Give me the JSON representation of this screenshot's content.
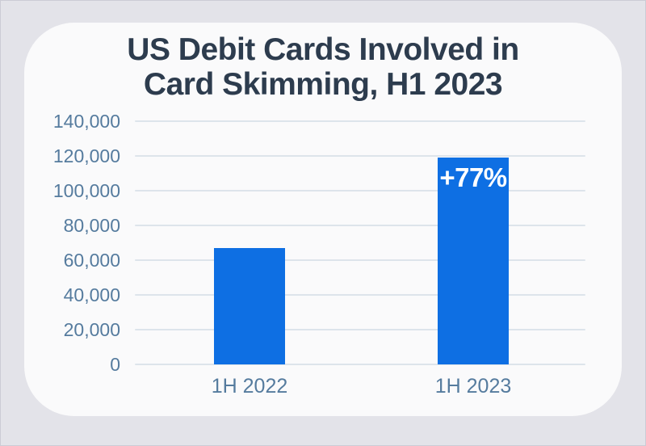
{
  "colors": {
    "page_bg": "#e3e3e9",
    "card_bg": "#fafafb",
    "title_color": "#2d3c4e",
    "tick_color": "#557b9e",
    "grid_color": "#dde4eb",
    "bar_color": "#0e6fe3",
    "annotation_color": "#ffffff"
  },
  "chart_data": {
    "type": "bar",
    "title": "US Debit Cards Involved in Card Skimming, H1 2023",
    "title_lines": [
      "US Debit Cards Involved in",
      "Card Skimming, H1 2023"
    ],
    "categories": [
      "1H 2022",
      "1H 2023"
    ],
    "values": [
      67000,
      119000
    ],
    "xlabel": "",
    "ylabel": "",
    "ylim": [
      0,
      140000
    ],
    "grid": true,
    "legend": false,
    "yticks": [
      {
        "value": 0,
        "label": "0"
      },
      {
        "value": 20000,
        "label": "20,000"
      },
      {
        "value": 40000,
        "label": "40,000"
      },
      {
        "value": 60000,
        "label": "60,000"
      },
      {
        "value": 80000,
        "label": "80,000"
      },
      {
        "value": 100000,
        "label": "100,000"
      },
      {
        "value": 120000,
        "label": "120,000"
      },
      {
        "value": 140000,
        "label": "140,000"
      }
    ],
    "annotations": [
      {
        "category_index": 1,
        "text": "+77%"
      }
    ]
  }
}
